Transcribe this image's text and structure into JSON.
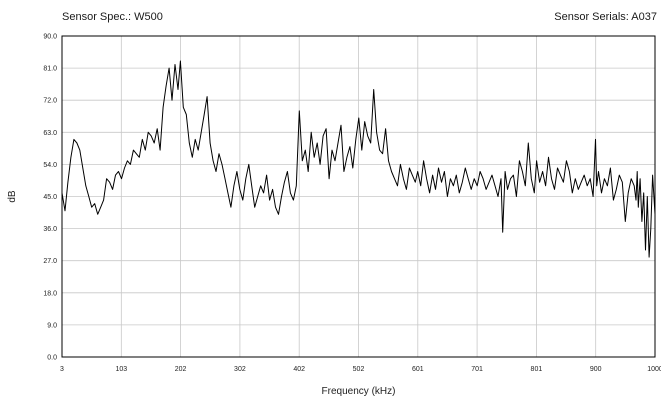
{
  "header": {
    "left": "Sensor Spec.: W500",
    "right": "Sensor Serials: A037"
  },
  "chart_data": {
    "type": "line",
    "title": "",
    "xlabel": "Frequency (kHz)",
    "ylabel": "dB",
    "xlim": [
      3,
      1000
    ],
    "ylim": [
      0,
      90
    ],
    "grid": true,
    "xtick_labels": [
      "3",
      "103",
      "202",
      "302",
      "402",
      "502",
      "601",
      "701",
      "801",
      "900",
      "1000"
    ],
    "ytick_labels": [
      "0.0",
      "9.0",
      "18.0",
      "27.0",
      "36.0",
      "45.0",
      "54.0",
      "63.0",
      "72.0",
      "81.0",
      "90.0"
    ],
    "series": [
      {
        "name": "",
        "color": "#000000",
        "x": [
          3,
          8,
          13,
          18,
          23,
          28,
          33,
          38,
          43,
          48,
          53,
          58,
          63,
          68,
          73,
          78,
          83,
          88,
          93,
          98,
          103,
          108,
          113,
          118,
          123,
          128,
          133,
          138,
          143,
          148,
          153,
          158,
          163,
          168,
          173,
          178,
          183,
          188,
          193,
          198,
          202,
          207,
          212,
          217,
          222,
          227,
          232,
          237,
          242,
          247,
          252,
          257,
          262,
          267,
          272,
          277,
          282,
          287,
          292,
          297,
          302,
          307,
          312,
          317,
          322,
          327,
          332,
          337,
          342,
          347,
          352,
          357,
          362,
          367,
          372,
          377,
          382,
          387,
          392,
          397,
          402,
          407,
          412,
          417,
          422,
          427,
          432,
          437,
          442,
          447,
          452,
          457,
          462,
          467,
          472,
          477,
          482,
          487,
          492,
          497,
          502,
          507,
          512,
          517,
          522,
          527,
          532,
          537,
          542,
          547,
          552,
          557,
          562,
          567,
          572,
          577,
          582,
          587,
          592,
          597,
          601,
          606,
          611,
          616,
          621,
          626,
          631,
          636,
          641,
          646,
          651,
          656,
          661,
          666,
          671,
          676,
          681,
          686,
          691,
          696,
          701,
          706,
          711,
          716,
          721,
          726,
          731,
          736,
          741,
          744,
          748,
          752,
          757,
          762,
          767,
          772,
          777,
          782,
          787,
          792,
          797,
          801,
          806,
          811,
          816,
          821,
          826,
          831,
          836,
          841,
          846,
          851,
          856,
          861,
          866,
          871,
          876,
          881,
          886,
          891,
          896,
          900,
          902,
          905,
          910,
          915,
          920,
          925,
          930,
          935,
          940,
          945,
          950,
          955,
          960,
          965,
          968,
          970,
          972,
          975,
          978,
          981,
          984,
          987,
          990,
          993,
          996,
          1000
        ],
        "y": [
          46,
          41,
          49,
          56,
          61,
          60,
          58,
          53,
          48,
          45,
          42,
          43,
          40,
          42,
          44,
          50,
          49,
          47,
          51,
          52,
          50,
          53,
          55,
          54,
          58,
          57,
          56,
          61,
          58,
          63,
          62,
          60,
          64,
          58,
          70,
          76,
          81,
          72,
          82,
          75,
          83,
          70,
          68,
          60,
          56,
          61,
          58,
          63,
          68,
          73,
          60,
          55,
          52,
          57,
          54,
          50,
          46,
          42,
          48,
          52,
          47,
          44,
          50,
          54,
          48,
          42,
          45,
          48,
          46,
          51,
          44,
          47,
          42,
          40,
          45,
          49,
          52,
          46,
          44,
          48,
          69,
          55,
          58,
          52,
          63,
          56,
          60,
          54,
          62,
          64,
          50,
          58,
          55,
          60,
          65,
          52,
          56,
          59,
          53,
          61,
          67,
          58,
          66,
          62,
          60,
          75,
          63,
          58,
          57,
          64,
          55,
          52,
          50,
          48,
          54,
          50,
          47,
          53,
          51,
          49,
          52,
          48,
          55,
          50,
          46,
          51,
          47,
          53,
          49,
          52,
          45,
          50,
          48,
          51,
          46,
          49,
          53,
          50,
          47,
          50,
          48,
          52,
          50,
          47,
          49,
          51,
          48,
          45,
          50,
          35,
          52,
          47,
          50,
          51,
          45,
          55,
          52,
          48,
          60,
          50,
          46,
          55,
          49,
          52,
          48,
          56,
          50,
          47,
          53,
          51,
          49,
          55,
          52,
          46,
          50,
          47,
          49,
          51,
          48,
          50,
          45,
          61,
          48,
          52,
          46,
          50,
          48,
          53,
          44,
          47,
          51,
          49,
          38,
          46,
          50,
          48,
          44,
          52,
          42,
          50,
          38,
          46,
          30,
          45,
          28,
          36,
          51,
          40
        ]
      }
    ]
  }
}
